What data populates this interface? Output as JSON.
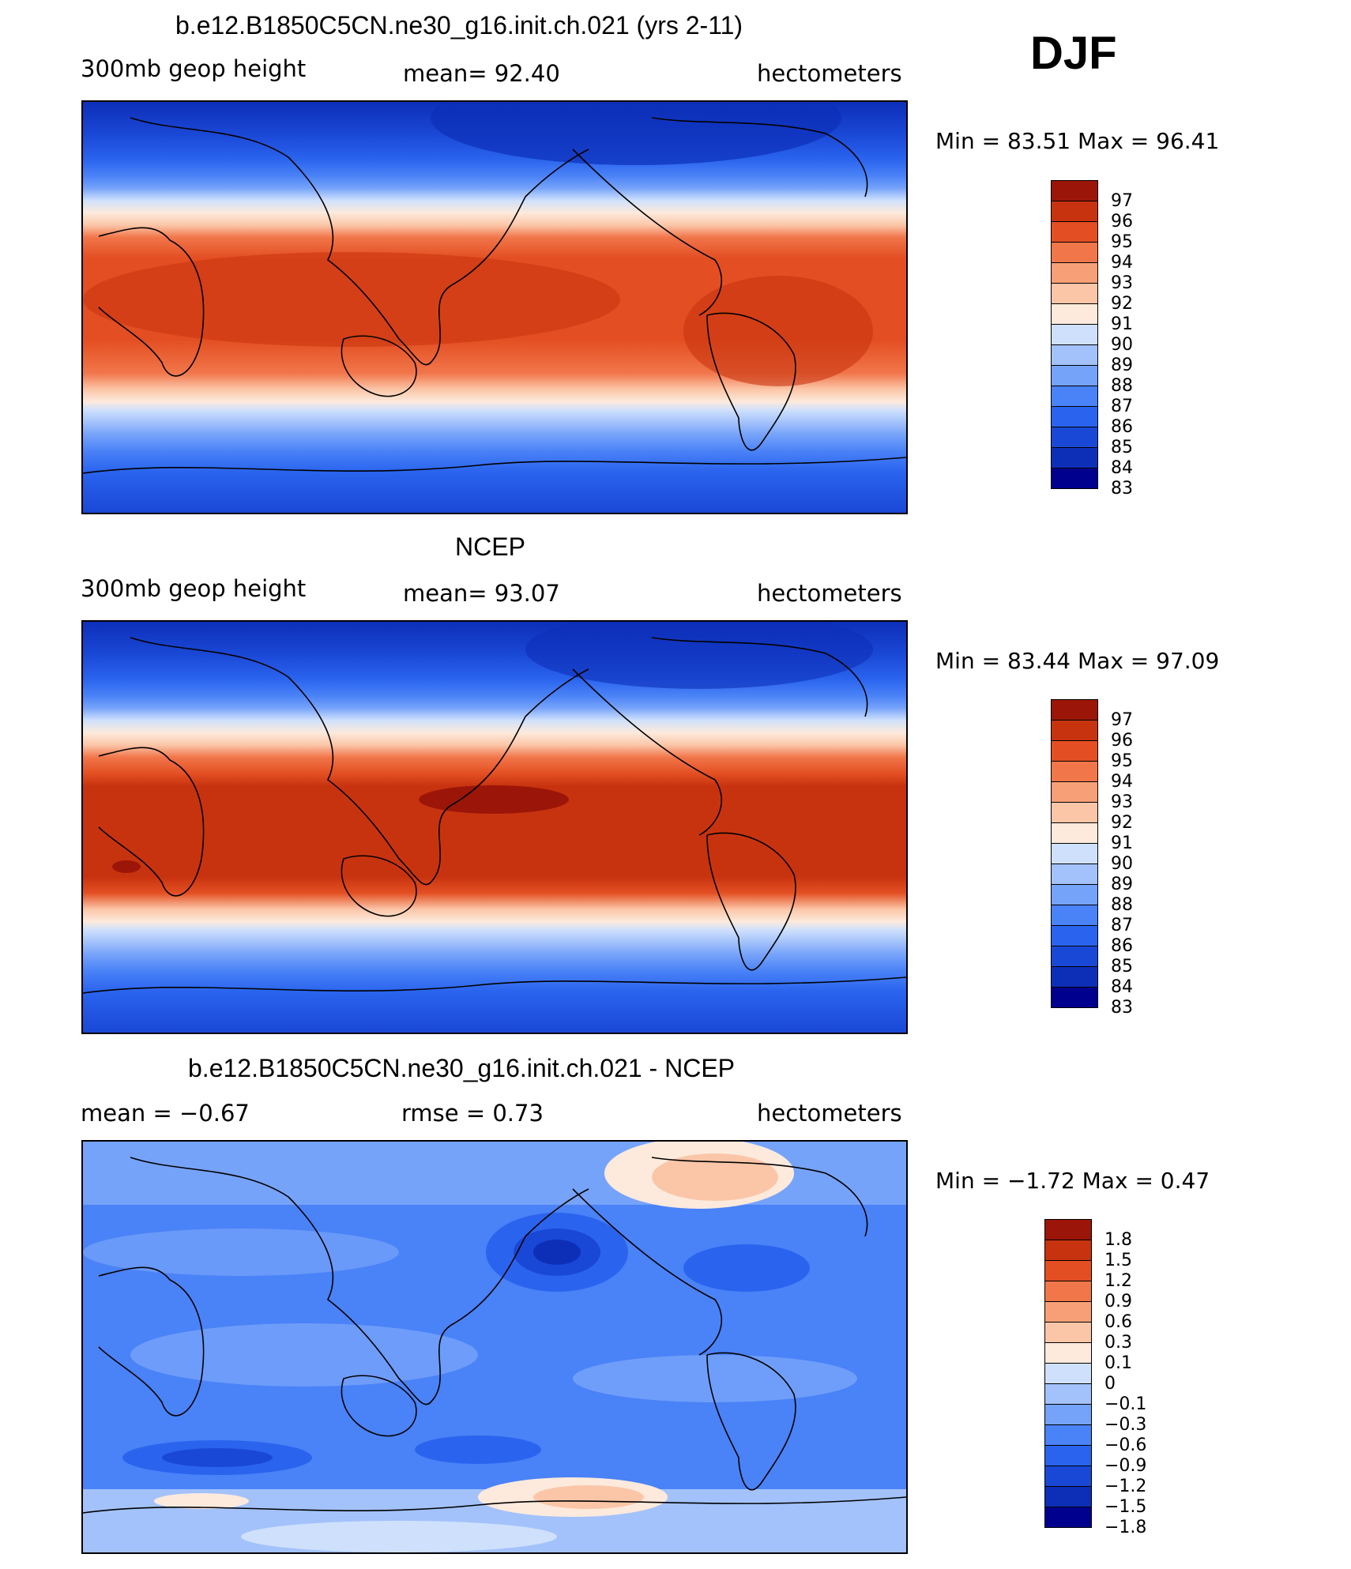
{
  "season": "DJF",
  "colors": {
    "heights": [
      "#00008f",
      "#0d2fb8",
      "#1a48d6",
      "#2a64ee",
      "#4a82f7",
      "#76a3fa",
      "#a3c2fb",
      "#cfe0fc",
      "#fdeadc",
      "#fbc6a8",
      "#f7a077",
      "#f1764a",
      "#e34f22",
      "#c8330f",
      "#9b1608"
    ],
    "diff": [
      "#00008f",
      "#0d2fb8",
      "#1a48d6",
      "#2a64ee",
      "#4a82f7",
      "#76a3fa",
      "#a3c2fb",
      "#cfe0fc",
      "#fdeadc",
      "#fbc6a8",
      "#f7a077",
      "#f1764a",
      "#e34f22",
      "#c8330f",
      "#9b1608"
    ]
  },
  "panels": [
    {
      "title": "b.e12.B1850C5CN.ne30_g16.init.ch.021 (yrs 2-11)",
      "left_label": "300mb geop height",
      "center_label": "mean=  92.40",
      "right_label": "hectometers",
      "minmax": "Min =   83.51  Max =    96.41",
      "colorbar_labels": [
        "97",
        "96",
        "95",
        "94",
        "93",
        "92",
        "91",
        "90",
        "89",
        "88",
        "87",
        "86",
        "85",
        "84",
        "83"
      ]
    },
    {
      "title": "NCEP",
      "left_label": "300mb geop height",
      "center_label": "mean=  93.07",
      "right_label": "hectometers",
      "minmax": "Min =   83.44  Max =    97.09",
      "colorbar_labels": [
        "97",
        "96",
        "95",
        "94",
        "93",
        "92",
        "91",
        "90",
        "89",
        "88",
        "87",
        "86",
        "85",
        "84",
        "83"
      ]
    },
    {
      "title": "b.e12.B1850C5CN.ne30_g16.init.ch.021 - NCEP",
      "left_label": "mean =   −0.67",
      "center_label": "rmse =    0.73",
      "right_label": "hectometers",
      "minmax": "Min =   −1.72  Max =     0.47",
      "colorbar_labels": [
        "1.8",
        "1.5",
        "1.2",
        "0.9",
        "0.6",
        "0.3",
        "0.1",
        "0",
        "−0.1",
        "−0.3",
        "−0.6",
        "−0.9",
        "−1.2",
        "−1.5",
        "−1.8"
      ]
    }
  ]
}
